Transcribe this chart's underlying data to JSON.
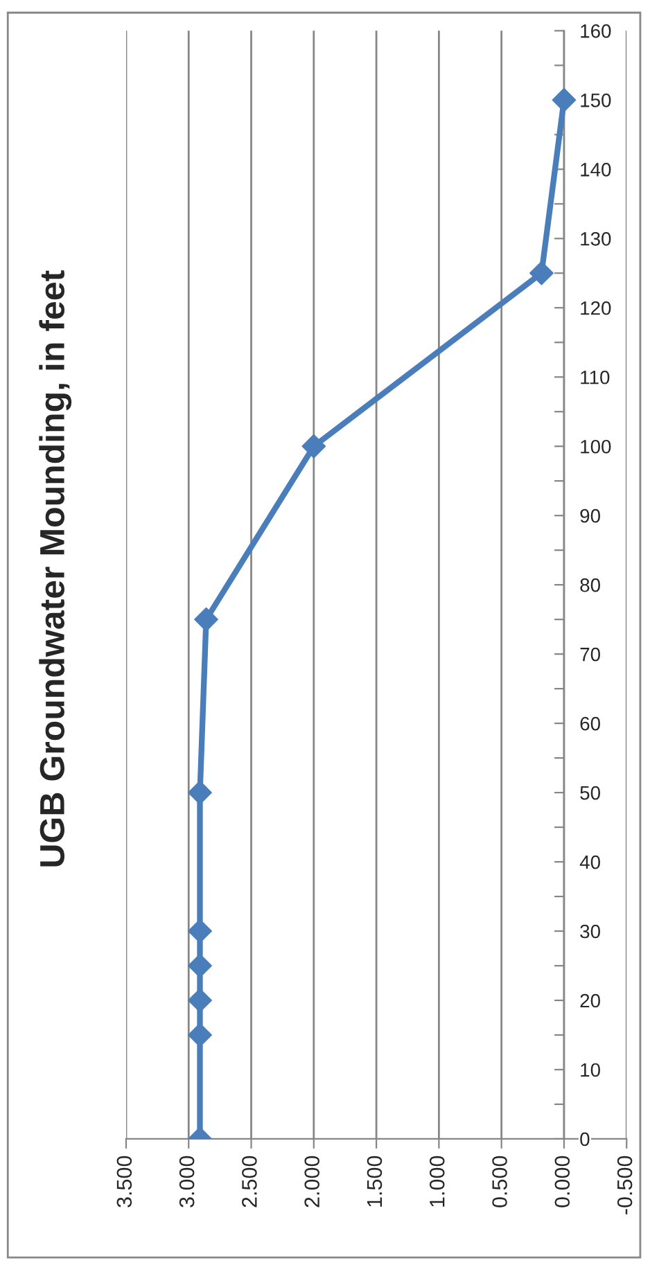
{
  "chart_data": {
    "type": "line",
    "title": "UGB Groundwater Mounding, in feet",
    "series": [
      {
        "color": "#4a7ebb",
        "x": [
          2.91,
          2.91,
          2.91,
          2.91,
          2.91,
          2.91,
          2.86,
          2.0,
          0.18,
          0.0
        ],
        "values": [
          0,
          15,
          20,
          25,
          30,
          50,
          75,
          100,
          125,
          150
        ]
      }
    ],
    "marker": "diamond",
    "line_style": "solid",
    "grid": "x",
    "legend": false,
    "xlim": [
      3.5,
      -0.5
    ],
    "xticks": [
      {
        "value": 3.5,
        "label": "3.500"
      },
      {
        "value": 3.0,
        "label": "3.000"
      },
      {
        "value": 2.5,
        "label": "2.500"
      },
      {
        "value": 2.0,
        "label": "2.000"
      },
      {
        "value": 1.5,
        "label": "1.500"
      },
      {
        "value": 1.0,
        "label": "1.000"
      },
      {
        "value": 0.5,
        "label": "0.500"
      },
      {
        "value": 0,
        "label": "0.000"
      },
      {
        "value": -0.5,
        "label": "-0.500"
      }
    ],
    "ylim": [
      0,
      160
    ],
    "yticks": [
      0,
      {
        "value": 5,
        "label": null
      },
      10,
      {
        "value": 15,
        "label": null
      },
      20,
      {
        "value": 25,
        "label": null
      },
      30,
      {
        "value": 35,
        "label": null
      },
      40,
      {
        "value": 45,
        "label": null
      },
      50,
      {
        "value": 55,
        "label": null
      },
      60,
      {
        "value": 65,
        "label": null
      },
      70,
      {
        "value": 75,
        "label": null
      },
      80,
      {
        "value": 85,
        "label": null
      },
      90,
      {
        "value": 95,
        "label": null
      },
      100,
      {
        "value": 105,
        "label": null
      },
      110,
      {
        "value": 115,
        "label": null
      },
      120,
      {
        "value": 125,
        "label": null
      },
      130,
      {
        "value": 135,
        "label": null
      },
      140,
      {
        "value": 145,
        "label": null
      },
      150,
      {
        "value": 155,
        "label": null
      },
      160
    ]
  }
}
